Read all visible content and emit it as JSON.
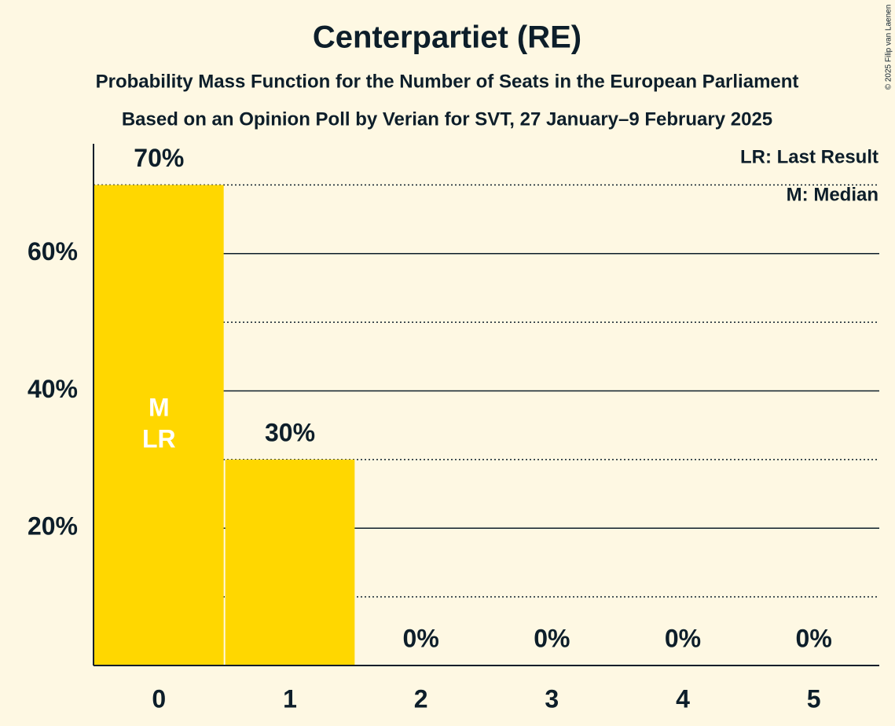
{
  "chart_data": {
    "type": "bar",
    "title": "Centerpartiet (RE)",
    "subtitles": [
      "Probability Mass Function for the Number of Seats in the European Parliament",
      "Based on an Opinion Poll by Verian for SVT, 27 January–9 February 2025"
    ],
    "copyright": "© 2025 Filip van Laenen",
    "categories": [
      0,
      1,
      2,
      3,
      4,
      5
    ],
    "values": [
      70,
      30,
      0,
      0,
      0,
      0
    ],
    "value_labels": [
      "70%",
      "30%",
      "0%",
      "0%",
      "0%",
      "0%"
    ],
    "color": "#ffd700",
    "ylim": [
      0,
      76
    ],
    "yticks": [
      {
        "value": 20,
        "label": "20%"
      },
      {
        "value": 40,
        "label": "40%"
      },
      {
        "value": 60,
        "label": "60%"
      }
    ],
    "minor_yticks": [
      10,
      30,
      50,
      70
    ],
    "grid": true,
    "median": {
      "label": "M",
      "x": 0
    },
    "last_result": {
      "label": "LR",
      "x": 0
    },
    "legend": [
      "LR: Last Result",
      "M: Median"
    ]
  }
}
